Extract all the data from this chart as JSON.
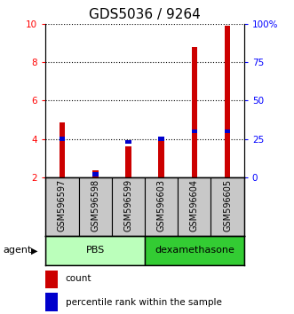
{
  "title": "GDS5036 / 9264",
  "samples": [
    "GSM596597",
    "GSM596598",
    "GSM596599",
    "GSM596603",
    "GSM596604",
    "GSM596605"
  ],
  "count_values": [
    4.85,
    2.35,
    3.6,
    4.0,
    8.8,
    9.9
  ],
  "percentile_values": [
    4.0,
    2.15,
    3.85,
    4.0,
    4.4,
    4.4
  ],
  "ylim_left": [
    2,
    10
  ],
  "ylim_right": [
    0,
    100
  ],
  "yticks_left": [
    2,
    4,
    6,
    8,
    10
  ],
  "yticks_right": [
    0,
    25,
    50,
    75,
    100
  ],
  "ytick_labels_right": [
    "0",
    "25",
    "50",
    "75",
    "100%"
  ],
  "groups": [
    {
      "label": "PBS",
      "indices": [
        0,
        1,
        2
      ],
      "color": "#bbffbb"
    },
    {
      "label": "dexamethasone",
      "indices": [
        3,
        4,
        5
      ],
      "color": "#33cc33"
    }
  ],
  "agent_label": "agent",
  "count_color": "#cc0000",
  "percentile_color": "#0000cc",
  "tick_area_color": "#c8c8c8",
  "legend_count_label": "count",
  "legend_percentile_label": "percentile rank within the sample",
  "title_fontsize": 11,
  "tick_fontsize": 7.5,
  "label_fontsize": 7,
  "group_fontsize": 8,
  "legend_fontsize": 7.5
}
